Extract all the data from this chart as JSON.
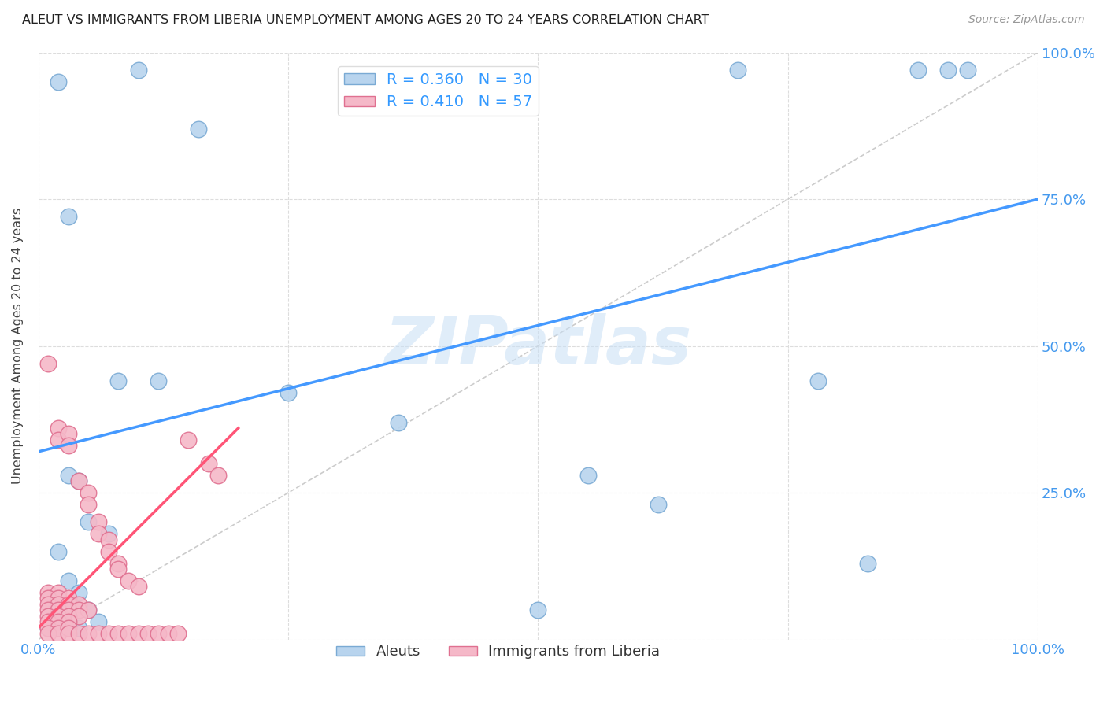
{
  "title": "ALEUT VS IMMIGRANTS FROM LIBERIA UNEMPLOYMENT AMONG AGES 20 TO 24 YEARS CORRELATION CHART",
  "source": "Source: ZipAtlas.com",
  "ylabel": "Unemployment Among Ages 20 to 24 years",
  "xlim": [
    0,
    1
  ],
  "ylim": [
    0,
    1
  ],
  "xticks": [
    0,
    0.25,
    0.5,
    0.75,
    1.0
  ],
  "yticks": [
    0.0,
    0.25,
    0.5,
    0.75,
    1.0
  ],
  "xticklabels": [
    "0.0%",
    "",
    "",
    "",
    "100.0%"
  ],
  "yticklabels_right": [
    "",
    "25.0%",
    "50.0%",
    "75.0%",
    "100.0%"
  ],
  "aleut_color": "#b8d4ee",
  "liberia_color": "#f5b8c8",
  "aleut_edge": "#7aaad4",
  "liberia_edge": "#e07090",
  "blue_line_color": "#4499ff",
  "pink_line_color": "#ff5577",
  "diagonal_color": "#cccccc",
  "watermark": "ZIPatlas",
  "aleut_points": [
    [
      0.02,
      0.95
    ],
    [
      0.1,
      0.97
    ],
    [
      0.16,
      0.87
    ],
    [
      0.03,
      0.72
    ],
    [
      0.08,
      0.44
    ],
    [
      0.12,
      0.44
    ],
    [
      0.25,
      0.42
    ],
    [
      0.36,
      0.37
    ],
    [
      0.55,
      0.28
    ],
    [
      0.62,
      0.23
    ],
    [
      0.78,
      0.44
    ],
    [
      0.83,
      0.13
    ],
    [
      0.5,
      0.05
    ],
    [
      0.88,
      0.97
    ],
    [
      0.91,
      0.97
    ],
    [
      0.93,
      0.97
    ],
    [
      0.7,
      0.97
    ],
    [
      0.03,
      0.28
    ],
    [
      0.04,
      0.27
    ],
    [
      0.05,
      0.2
    ],
    [
      0.07,
      0.18
    ],
    [
      0.02,
      0.15
    ],
    [
      0.03,
      0.1
    ],
    [
      0.04,
      0.08
    ],
    [
      0.05,
      0.05
    ],
    [
      0.06,
      0.03
    ],
    [
      0.01,
      0.02
    ],
    [
      0.02,
      0.02
    ],
    [
      0.03,
      0.02
    ],
    [
      0.04,
      0.02
    ]
  ],
  "liberia_points": [
    [
      0.01,
      0.47
    ],
    [
      0.02,
      0.36
    ],
    [
      0.02,
      0.34
    ],
    [
      0.03,
      0.35
    ],
    [
      0.03,
      0.33
    ],
    [
      0.15,
      0.34
    ],
    [
      0.17,
      0.3
    ],
    [
      0.18,
      0.28
    ],
    [
      0.04,
      0.27
    ],
    [
      0.05,
      0.25
    ],
    [
      0.05,
      0.23
    ],
    [
      0.06,
      0.2
    ],
    [
      0.06,
      0.18
    ],
    [
      0.07,
      0.17
    ],
    [
      0.07,
      0.15
    ],
    [
      0.08,
      0.13
    ],
    [
      0.08,
      0.12
    ],
    [
      0.09,
      0.1
    ],
    [
      0.1,
      0.09
    ],
    [
      0.01,
      0.08
    ],
    [
      0.02,
      0.08
    ],
    [
      0.01,
      0.07
    ],
    [
      0.02,
      0.07
    ],
    [
      0.03,
      0.07
    ],
    [
      0.01,
      0.06
    ],
    [
      0.02,
      0.06
    ],
    [
      0.03,
      0.06
    ],
    [
      0.04,
      0.06
    ],
    [
      0.01,
      0.05
    ],
    [
      0.02,
      0.05
    ],
    [
      0.03,
      0.05
    ],
    [
      0.04,
      0.05
    ],
    [
      0.05,
      0.05
    ],
    [
      0.01,
      0.04
    ],
    [
      0.02,
      0.04
    ],
    [
      0.03,
      0.04
    ],
    [
      0.04,
      0.04
    ],
    [
      0.01,
      0.03
    ],
    [
      0.02,
      0.03
    ],
    [
      0.03,
      0.03
    ],
    [
      0.01,
      0.02
    ],
    [
      0.02,
      0.02
    ],
    [
      0.01,
      0.01
    ],
    [
      0.02,
      0.01
    ],
    [
      0.03,
      0.02
    ],
    [
      0.03,
      0.01
    ],
    [
      0.04,
      0.01
    ],
    [
      0.05,
      0.01
    ],
    [
      0.06,
      0.01
    ],
    [
      0.07,
      0.01
    ],
    [
      0.08,
      0.01
    ],
    [
      0.09,
      0.01
    ],
    [
      0.1,
      0.01
    ],
    [
      0.11,
      0.01
    ],
    [
      0.12,
      0.01
    ],
    [
      0.13,
      0.01
    ],
    [
      0.14,
      0.01
    ]
  ],
  "blue_line_x": [
    0.0,
    1.0
  ],
  "blue_line_y": [
    0.32,
    0.75
  ],
  "pink_line_x": [
    0.0,
    0.2
  ],
  "pink_line_y": [
    0.02,
    0.36
  ]
}
